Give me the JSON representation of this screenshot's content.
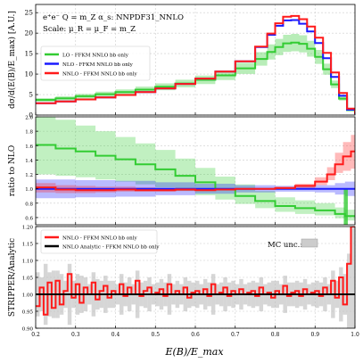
{
  "chart_data": {
    "type": "line",
    "title": "",
    "xlabel": "E(B)/E_max",
    "xlim": [
      0.2,
      1.0
    ],
    "x_ticks": [
      "0.2",
      "0.3",
      "0.4",
      "0.5",
      "0.6",
      "0.7",
      "0.8",
      "0.9",
      "1.0"
    ],
    "x_tick_values": [
      0.2,
      0.3,
      0.4,
      0.5,
      0.6,
      0.7,
      0.8,
      0.9,
      1.0
    ],
    "panels": [
      {
        "id": "top",
        "ylabel": "dσ/d(E(B)/E_max) [A.U.]",
        "ylim": [
          0,
          27
        ],
        "y_ticks": [
          "0",
          "5",
          "10",
          "15",
          "20",
          "25"
        ],
        "y_tick_values": [
          0,
          5,
          10,
          15,
          20,
          25
        ],
        "annotation_lines": [
          "e⁺e⁻ Q = m_Z α_s: NNPDF31_NNLO",
          "Scale: μ_R = μ_F = m_Z"
        ],
        "legend_position": "upper-left",
        "series": [
          {
            "name": "LO - FFKM NNLO bb only",
            "color": "#33cc33",
            "band": true,
            "x": [
              0.2,
              0.25,
              0.3,
              0.35,
              0.4,
              0.45,
              0.5,
              0.55,
              0.6,
              0.65,
              0.7,
              0.75,
              0.78,
              0.8,
              0.82,
              0.84,
              0.86,
              0.88,
              0.9,
              0.92,
              0.94,
              0.96,
              0.98,
              1.0
            ],
            "y": [
              3.7,
              4.1,
              4.6,
              5.1,
              5.6,
              6.2,
              6.9,
              7.7,
              8.6,
              9.7,
              11.4,
              13.7,
              15.4,
              16.6,
              17.5,
              17.7,
              17.4,
              16.2,
              14.2,
              11.2,
              7.5,
              4.0,
              1.2,
              0.2
            ],
            "band_rel": 0.12
          },
          {
            "name": "NLO - FFKM NNLO bb only",
            "color": "#1a1aff",
            "band": false,
            "x": [
              0.2,
              0.25,
              0.3,
              0.35,
              0.4,
              0.45,
              0.5,
              0.55,
              0.6,
              0.65,
              0.7,
              0.75,
              0.78,
              0.8,
              0.82,
              0.84,
              0.86,
              0.88,
              0.9,
              0.92,
              0.94,
              0.96,
              0.98,
              1.0
            ],
            "y": [
              2.9,
              3.3,
              3.8,
              4.3,
              4.9,
              5.6,
              6.5,
              7.6,
              8.9,
              10.6,
              13.1,
              16.6,
              19.6,
              21.8,
              23.1,
              23.2,
              22.3,
              20.4,
              17.6,
              13.9,
              9.3,
              4.7,
              1.3,
              0.2
            ]
          },
          {
            "name": "NNLO - FFKM NNLO bb only",
            "color": "#ff1a1a",
            "band": false,
            "x": [
              0.2,
              0.25,
              0.3,
              0.35,
              0.4,
              0.45,
              0.5,
              0.55,
              0.6,
              0.65,
              0.7,
              0.75,
              0.78,
              0.8,
              0.82,
              0.84,
              0.86,
              0.88,
              0.9,
              0.92,
              0.94,
              0.96,
              0.98,
              1.0
            ],
            "y": [
              2.9,
              3.3,
              3.8,
              4.3,
              4.9,
              5.6,
              6.5,
              7.6,
              8.9,
              10.6,
              13.1,
              16.7,
              19.9,
              22.4,
              24.0,
              24.2,
              23.4,
              21.6,
              18.9,
              15.2,
              10.4,
              5.4,
              1.6,
              0.3
            ]
          }
        ]
      },
      {
        "id": "middle",
        "ylabel": "ratio to NLO",
        "ylim": [
          0.5,
          2.0
        ],
        "y_ticks": [
          "0.6",
          "0.8",
          "1.0",
          "1.2",
          "1.4",
          "1.6",
          "1.8",
          "2.0"
        ],
        "y_tick_values": [
          0.6,
          0.8,
          1.0,
          1.2,
          1.4,
          1.6,
          1.8,
          2.0
        ],
        "reference_line": 1.0,
        "series": [
          {
            "name": "LO",
            "color": "#33cc33",
            "x": [
              0.2,
              0.25,
              0.3,
              0.35,
              0.4,
              0.45,
              0.5,
              0.55,
              0.6,
              0.65,
              0.7,
              0.75,
              0.8,
              0.85,
              0.9,
              0.95,
              0.975
            ],
            "y": [
              1.61,
              1.56,
              1.52,
              1.46,
              1.41,
              1.34,
              1.27,
              1.18,
              1.09,
              0.99,
              0.9,
              0.83,
              0.76,
              0.73,
              0.7,
              0.65,
              0.62
            ],
            "band_lo": [
              1.2,
              1.18,
              1.16,
              1.13,
              1.1,
              1.06,
              1.02,
              0.97,
              0.91,
              0.85,
              0.79,
              0.73,
              0.68,
              0.65,
              0.63,
              0.59,
              0.56
            ],
            "band_hi": [
              2.05,
              1.96,
              1.88,
              1.8,
              1.72,
              1.63,
              1.54,
              1.42,
              1.29,
              1.17,
              1.06,
              0.97,
              0.88,
              0.84,
              0.8,
              0.74,
              0.71
            ]
          },
          {
            "name": "NLO",
            "color": "#1a1aff",
            "x": [
              0.2,
              0.3,
              0.4,
              0.5,
              0.6,
              0.7,
              0.8,
              0.9,
              0.95,
              0.975,
              1.0
            ],
            "y": [
              1.0,
              1.0,
              1.0,
              1.0,
              1.0,
              1.0,
              1.0,
              1.0,
              1.0,
              1.0,
              1.0
            ],
            "band_lo": [
              0.87,
              0.88,
              0.89,
              0.91,
              0.93,
              0.95,
              0.96,
              0.95,
              0.92,
              0.9,
              0.9
            ],
            "band_hi": [
              1.13,
              1.12,
              1.11,
              1.09,
              1.07,
              1.05,
              1.04,
              1.05,
              1.08,
              1.1,
              1.1
            ]
          },
          {
            "name": "NNLO",
            "color": "#ff1a1a",
            "x": [
              0.2,
              0.25,
              0.3,
              0.35,
              0.4,
              0.45,
              0.5,
              0.55,
              0.6,
              0.65,
              0.7,
              0.75,
              0.8,
              0.85,
              0.9,
              0.93,
              0.95,
              0.97,
              0.99
            ],
            "y": [
              1.02,
              0.99,
              0.98,
              0.98,
              0.99,
              0.98,
              0.98,
              0.99,
              0.98,
              0.99,
              1.0,
              1.0,
              1.01,
              1.04,
              1.1,
              1.2,
              1.34,
              1.45,
              1.52
            ],
            "band_lo": [
              0.95,
              0.94,
              0.94,
              0.95,
              0.96,
              0.96,
              0.96,
              0.97,
              0.97,
              0.98,
              0.99,
              0.99,
              0.99,
              1.01,
              1.05,
              1.12,
              1.22,
              1.25,
              1.28
            ],
            "band_hi": [
              1.08,
              1.05,
              1.04,
              1.03,
              1.03,
              1.02,
              1.01,
              1.01,
              1.0,
              1.0,
              1.01,
              1.01,
              1.03,
              1.07,
              1.16,
              1.3,
              1.5,
              1.65,
              1.75
            ]
          }
        ]
      },
      {
        "id": "bottom",
        "ylabel": "STRIPPER/Analytic",
        "ylim": [
          0.9,
          1.2
        ],
        "y_ticks": [
          "0.90",
          "0.95",
          "1.00",
          "1.05",
          "1.10",
          "1.15",
          "1.20"
        ],
        "y_tick_values": [
          0.9,
          0.95,
          1.0,
          1.05,
          1.1,
          1.15,
          1.2
        ],
        "legend_position": "upper-left",
        "annotation": "MC unc.:",
        "series": [
          {
            "name": "NNLO - FFKM NNLO bb only",
            "color": "#ff1a1a",
            "x": [
              0.2,
              0.21,
              0.22,
              0.23,
              0.24,
              0.25,
              0.26,
              0.27,
              0.28,
              0.29,
              0.3,
              0.31,
              0.32,
              0.33,
              0.34,
              0.35,
              0.36,
              0.37,
              0.38,
              0.39,
              0.4,
              0.41,
              0.42,
              0.43,
              0.44,
              0.45,
              0.46,
              0.47,
              0.48,
              0.49,
              0.5,
              0.51,
              0.52,
              0.53,
              0.54,
              0.55,
              0.56,
              0.57,
              0.58,
              0.59,
              0.6,
              0.61,
              0.62,
              0.63,
              0.64,
              0.65,
              0.66,
              0.67,
              0.68,
              0.69,
              0.7,
              0.71,
              0.72,
              0.73,
              0.74,
              0.75,
              0.76,
              0.77,
              0.78,
              0.79,
              0.8,
              0.81,
              0.82,
              0.83,
              0.84,
              0.85,
              0.86,
              0.87,
              0.88,
              0.89,
              0.9,
              0.91,
              0.92,
              0.93,
              0.94,
              0.95,
              0.96,
              0.97,
              0.98,
              0.99
            ],
            "y": [
              0.965,
              1.02,
              0.94,
              1.035,
              0.96,
              1.04,
              0.97,
              1.01,
              1.06,
              0.99,
              1.03,
              0.975,
              1.02,
              1.0,
              1.035,
              0.985,
              1.01,
              1.025,
              0.99,
              1.01,
              1.0,
              1.03,
              0.995,
              1.02,
              1.0,
              1.04,
              0.995,
              1.01,
              1.02,
              1.0,
              1.005,
              1.015,
              0.995,
              1.03,
              1.0,
              1.01,
              1.0,
              1.02,
              0.99,
              1.005,
              1.01,
              1.0,
              1.015,
              0.995,
              1.03,
              1.0,
              1.005,
              1.02,
              0.995,
              1.01,
              1.0,
              1.015,
              1.0,
              1.005,
              1.01,
              0.995,
              1.02,
              1.0,
              1.005,
              0.99,
              1.01,
              1.0,
              1.025,
              0.995,
              1.005,
              1.01,
              0.995,
              1.015,
              1.0,
              1.005,
              1.01,
              0.995,
              1.02,
              1.0,
              1.04,
              0.99,
              1.05,
              0.97,
              1.09,
              1.2
            ]
          },
          {
            "name": "NNLO Analytic - FFKM NNLO bb only",
            "color": "#000000",
            "x": [
              0.2,
              1.0
            ],
            "y": [
              1.0,
              1.0
            ]
          }
        ]
      }
    ]
  }
}
